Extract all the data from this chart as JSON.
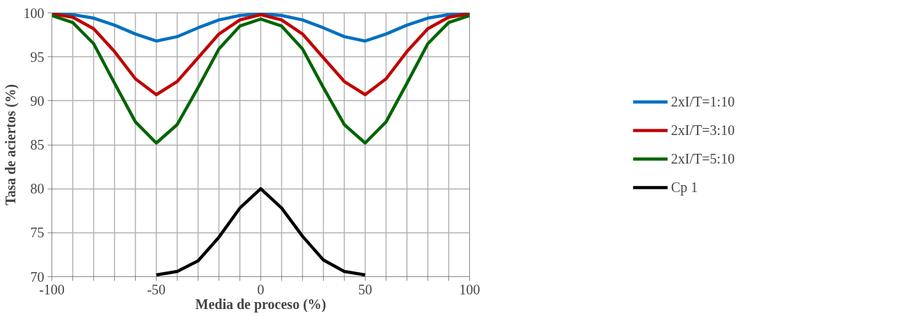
{
  "chart_data": {
    "type": "line",
    "xlabel": "Media de proceso (%)",
    "ylabel": "Tasa de aciertos (%)",
    "x": [
      -100,
      -90,
      -80,
      -70,
      -60,
      -50,
      -40,
      -30,
      -20,
      -10,
      0,
      10,
      20,
      30,
      40,
      50,
      60,
      70,
      80,
      90,
      100
    ],
    "series": [
      {
        "name": "2xI/T=1:10",
        "color": "#0070c0",
        "values": [
          99.9,
          99.8,
          99.4,
          98.6,
          97.6,
          96.8,
          97.3,
          98.3,
          99.2,
          99.7,
          99.9,
          99.7,
          99.2,
          98.3,
          97.3,
          96.8,
          97.6,
          98.6,
          99.4,
          99.8,
          99.9
        ]
      },
      {
        "name": "2xI/T=3:10",
        "color": "#c00000",
        "values": [
          99.9,
          99.5,
          98.2,
          95.6,
          92.5,
          90.7,
          92.2,
          94.9,
          97.6,
          99.2,
          99.8,
          99.2,
          97.6,
          94.9,
          92.2,
          90.7,
          92.5,
          95.6,
          98.2,
          99.5,
          99.9
        ]
      },
      {
        "name": "2xI/T=5:10",
        "color": "#006400",
        "values": [
          99.7,
          98.9,
          96.5,
          92.0,
          87.6,
          85.2,
          87.3,
          91.5,
          95.9,
          98.5,
          99.3,
          98.5,
          95.9,
          91.5,
          87.3,
          85.2,
          87.6,
          92.0,
          96.5,
          98.9,
          99.7
        ]
      },
      {
        "name": "Cp 1",
        "color": "#000000",
        "x": [
          -50,
          -40,
          -30,
          -20,
          -10,
          0,
          10,
          20,
          30,
          40,
          50
        ],
        "values": [
          70.2,
          70.6,
          71.8,
          74.5,
          77.8,
          80.0,
          77.8,
          74.6,
          71.9,
          70.6,
          70.2
        ]
      }
    ],
    "xlim": [
      -100,
      100
    ],
    "xticks": [
      -100,
      {
        "value": -90,
        "label": null
      },
      {
        "value": -80,
        "label": null
      },
      {
        "value": -70,
        "label": null
      },
      {
        "value": -60,
        "label": null
      },
      -50,
      {
        "value": -40,
        "label": null
      },
      {
        "value": -30,
        "label": null
      },
      {
        "value": -20,
        "label": null
      },
      {
        "value": -10,
        "label": null
      },
      0,
      {
        "value": 10,
        "label": null
      },
      {
        "value": 20,
        "label": null
      },
      {
        "value": 30,
        "label": null
      },
      {
        "value": 40,
        "label": null
      },
      50,
      {
        "value": 60,
        "label": null
      },
      {
        "value": 70,
        "label": null
      },
      {
        "value": 80,
        "label": null
      },
      {
        "value": 90,
        "label": null
      },
      100
    ],
    "ylim": [
      70,
      100
    ],
    "yticks": [
      70,
      75,
      80,
      85,
      90,
      95,
      100
    ],
    "grid": true,
    "legend": "right",
    "marker": "none",
    "line_style": "solid"
  }
}
